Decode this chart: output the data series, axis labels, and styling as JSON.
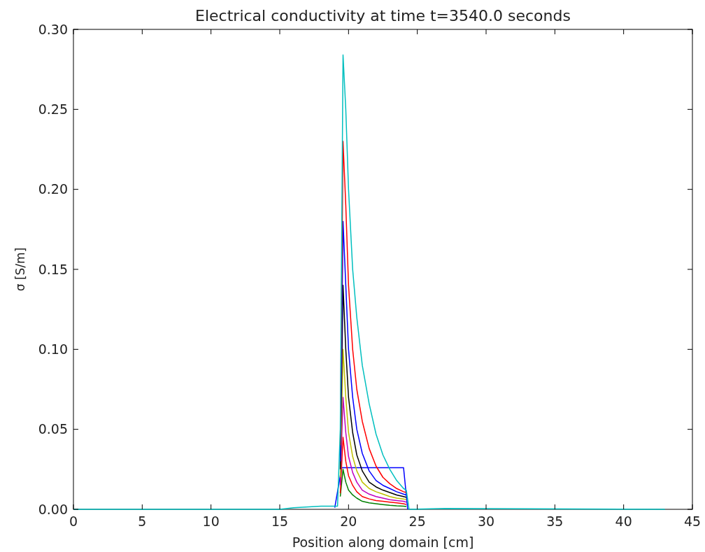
{
  "chart_data": {
    "type": "line",
    "title": "Electrical conductivity at time t=3540.0 seconds",
    "xlabel": "Position along domain [cm]",
    "ylabel": "σ [S/m]",
    "x": [
      0,
      15,
      16,
      18,
      19.2,
      19.4,
      19.6,
      19.8,
      20.0,
      20.3,
      20.6,
      21.0,
      21.5,
      22,
      22.5,
      23,
      23.5,
      24,
      24.2,
      24.4,
      27,
      43
    ],
    "xlim": [
      0,
      45
    ],
    "xticks": [
      0,
      5,
      10,
      15,
      20,
      25,
      30,
      35,
      40,
      45
    ],
    "ylim": [
      0,
      0.3
    ],
    "yticks": [
      {
        "value": 0,
        "label": "0.00"
      },
      {
        "value": 0.05,
        "label": "0.05"
      },
      {
        "value": 0.1,
        "label": "0.10"
      },
      {
        "value": 0.15,
        "label": "0.15"
      },
      {
        "value": 0.2,
        "label": "0.20"
      },
      {
        "value": 0.25,
        "label": "0.25"
      },
      {
        "value": 0.3,
        "label": "0.30"
      }
    ],
    "grid": false,
    "marker": "none",
    "line_style": "solid",
    "series": [
      {
        "color": "#0000ff",
        "x": [
          19,
          19.5,
          24,
          24.3
        ],
        "values": [
          0.001,
          0.026,
          0.026,
          0
        ]
      },
      {
        "color": "#008000",
        "x": [
          19.4,
          19.6,
          19.8,
          20.0,
          20.3,
          20.6,
          21.0,
          21.5,
          22,
          22.5,
          23,
          23.5,
          24,
          24.2
        ],
        "values": [
          0.008,
          0.025,
          0.017,
          0.012,
          0.009,
          0.007,
          0.005,
          0.004,
          0.0035,
          0.003,
          0.0025,
          0.0022,
          0.002,
          0.0018
        ]
      },
      {
        "color": "#ff0000",
        "x": [
          19.4,
          19.6,
          19.8,
          20.0,
          20.3,
          20.6,
          21.0,
          21.5,
          22,
          22.5,
          23,
          23.5,
          24,
          24.2
        ],
        "values": [
          0.01,
          0.045,
          0.03,
          0.021,
          0.015,
          0.011,
          0.008,
          0.0065,
          0.0055,
          0.005,
          0.0045,
          0.004,
          0.0035,
          0.003
        ]
      },
      {
        "color": "#bf00bf",
        "x": [
          19.4,
          19.6,
          19.8,
          20.0,
          20.3,
          20.6,
          21.0,
          21.5,
          22,
          22.5,
          23,
          23.5,
          24,
          24.2
        ],
        "values": [
          0.015,
          0.07,
          0.048,
          0.033,
          0.023,
          0.017,
          0.012,
          0.0095,
          0.008,
          0.007,
          0.006,
          0.0055,
          0.005,
          0.0045
        ]
      },
      {
        "color": "#bfbf00",
        "x": [
          19.4,
          19.6,
          19.8,
          20.0,
          20.3,
          20.6,
          21.0,
          21.5,
          22,
          22.5,
          23,
          23.5,
          24,
          24.2
        ],
        "values": [
          0.02,
          0.1,
          0.07,
          0.048,
          0.033,
          0.024,
          0.017,
          0.013,
          0.011,
          0.0095,
          0.008,
          0.007,
          0.0065,
          0.006
        ]
      },
      {
        "color": "#000000",
        "x": [
          19.4,
          19.6,
          19.8,
          20.0,
          20.3,
          20.6,
          21.0,
          21.5,
          22,
          22.5,
          23,
          23.5,
          24,
          24.2
        ],
        "values": [
          0.025,
          0.14,
          0.1,
          0.07,
          0.048,
          0.034,
          0.024,
          0.017,
          0.014,
          0.012,
          0.0105,
          0.009,
          0.008,
          0.0075
        ]
      },
      {
        "color": "#0000ff",
        "x": [
          19.4,
          19.6,
          19.8,
          20.0,
          20.3,
          20.6,
          21.0,
          21.5,
          22,
          22.5,
          23,
          23.5,
          24,
          24.2
        ],
        "values": [
          0.03,
          0.18,
          0.14,
          0.1,
          0.07,
          0.05,
          0.035,
          0.024,
          0.018,
          0.015,
          0.013,
          0.011,
          0.0095,
          0.009
        ]
      },
      {
        "color": "#ff0000",
        "x": [
          19.4,
          19.6,
          19.8,
          20.0,
          20.3,
          20.6,
          21.0,
          21.5,
          22,
          22.5,
          23,
          23.5,
          24,
          24.2
        ],
        "values": [
          0.04,
          0.23,
          0.19,
          0.14,
          0.1,
          0.075,
          0.055,
          0.038,
          0.027,
          0.02,
          0.016,
          0.013,
          0.011,
          0.0105
        ]
      },
      {
        "color": "#00bfbf",
        "values": [
          0,
          0,
          0.001,
          0.002,
          0.002,
          0.05,
          0.284,
          0.25,
          0.2,
          0.15,
          0.12,
          0.09,
          0.066,
          0.047,
          0.034,
          0.025,
          0.018,
          0.013,
          0.012,
          0,
          0.0005,
          0
        ]
      }
    ]
  }
}
